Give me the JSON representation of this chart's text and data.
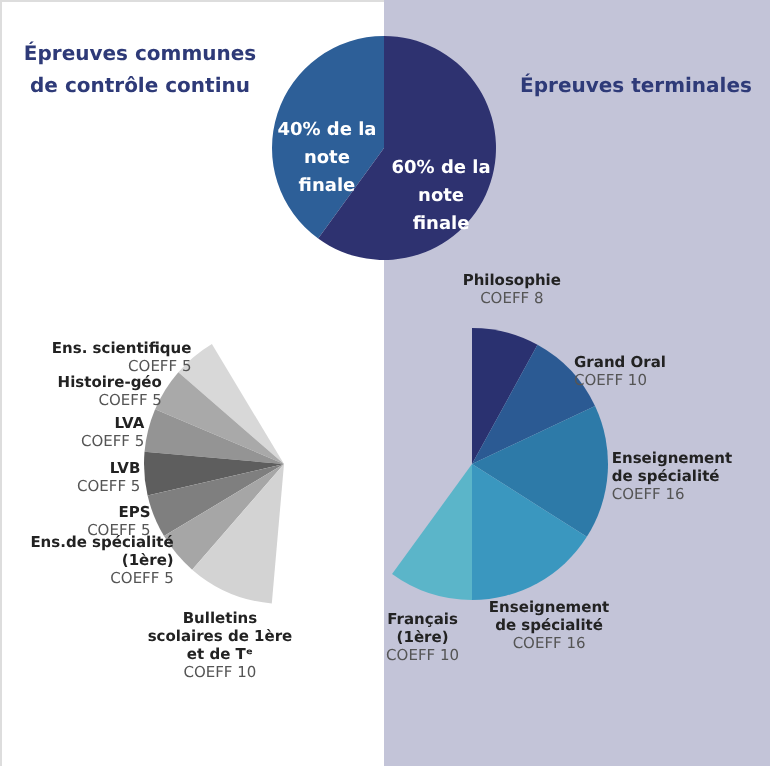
{
  "chart_data": [
    {
      "type": "pie",
      "categories": [
        "40% de la note finale",
        "60% de la note finale"
      ],
      "values": [
        40,
        60
      ],
      "colors": [
        "#2d5f98",
        "#2e3270"
      ]
    },
    {
      "type": "pie",
      "title": "Épreuves communes de contrôle continu",
      "categories": [
        "Ens. scientifique",
        "Histoire-géo",
        "LVA",
        "LVB",
        "EPS",
        "Ens.de spécialité (1ère)",
        "Bulletins scolaires de 1ère et de Tᵉ"
      ],
      "values": [
        5,
        5,
        5,
        5,
        5,
        5,
        10
      ],
      "value_labels": [
        "COEFF 5",
        "COEFF 5",
        "COEFF 5",
        "COEFF 5",
        "COEFF 5",
        "COEFF 5",
        "COEFF 10"
      ],
      "colors": [
        "#d8d8d8",
        "#a9a9a9",
        "#949494",
        "#5e5e5e",
        "#7f7f7f",
        "#a6a6a6",
        "#d3d3d3"
      ]
    },
    {
      "type": "pie",
      "title": "Épreuves terminales",
      "categories": [
        "Philosophie",
        "Grand Oral",
        "Enseignement de spécialité",
        "Enseignement de spécialité",
        "Français (1ère)"
      ],
      "values": [
        8,
        10,
        16,
        16,
        10
      ],
      "value_labels": [
        "COEFF 8",
        "COEFF 10",
        "COEFF 16",
        "COEFF 16",
        "COEFF 10"
      ],
      "colors": [
        "#2a3170",
        "#2b5a93",
        "#2d7aa8",
        "#3a97bf",
        "#5bb5c9"
      ]
    }
  ]
}
